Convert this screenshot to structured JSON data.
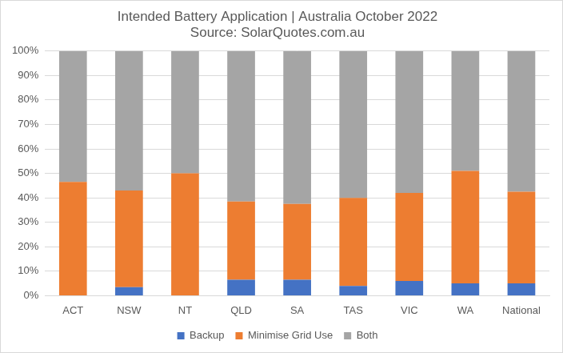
{
  "chart_data": {
    "type": "bar",
    "title": "Intended Battery Application | Australia October 2022",
    "subtitle": "Source: SolarQuotes.com.au",
    "categories": [
      "ACT",
      "NSW",
      "NT",
      "QLD",
      "SA",
      "TAS",
      "VIC",
      "WA",
      "National"
    ],
    "series": [
      {
        "name": "Backup",
        "color": "#4472c4",
        "values": [
          0,
          3.5,
          0,
          6.5,
          6.5,
          4,
          6,
          5,
          5
        ]
      },
      {
        "name": "Minimise Grid Use",
        "color": "#ed7d31",
        "values": [
          46.5,
          39.5,
          50,
          32,
          31,
          36,
          36,
          46,
          37.5
        ]
      },
      {
        "name": "Both",
        "color": "#a5a5a5",
        "values": [
          53.5,
          57,
          50,
          61.5,
          62.5,
          60,
          58,
          49,
          57.5
        ]
      }
    ],
    "stacked": true,
    "ylim": [
      0,
      100
    ],
    "yticks": [
      {
        "value": 0,
        "label": "0%"
      },
      {
        "value": 10,
        "label": "10%"
      },
      {
        "value": 20,
        "label": "20%"
      },
      {
        "value": 30,
        "label": "30%"
      },
      {
        "value": 40,
        "label": "40%"
      },
      {
        "value": 50,
        "label": "50%"
      },
      {
        "value": 60,
        "label": "60%"
      },
      {
        "value": 70,
        "label": "70%"
      },
      {
        "value": 80,
        "label": "80%"
      },
      {
        "value": 90,
        "label": "90%"
      },
      {
        "value": 100,
        "label": "100%"
      }
    ],
    "grid": true,
    "legend": "bottom"
  }
}
